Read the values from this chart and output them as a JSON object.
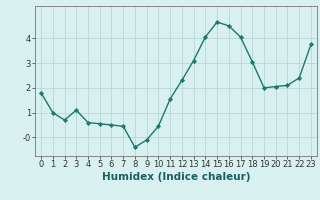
{
  "x": [
    0,
    1,
    2,
    3,
    4,
    5,
    6,
    7,
    8,
    9,
    10,
    11,
    12,
    13,
    14,
    15,
    16,
    17,
    18,
    19,
    20,
    21,
    22,
    23
  ],
  "y": [
    1.8,
    1.0,
    0.7,
    1.1,
    0.6,
    0.55,
    0.5,
    0.45,
    -0.4,
    -0.1,
    0.45,
    1.55,
    2.3,
    3.1,
    4.05,
    4.65,
    4.5,
    4.05,
    3.05,
    2.0,
    2.05,
    2.1,
    2.4,
    3.75
  ],
  "line_color": "#1a7a6e",
  "marker": "D",
  "marker_size": 2.2,
  "background_color": "#d9f0f0",
  "grid_color": "#b8d8d8",
  "xlabel": "Humidex (Indice chaleur)",
  "xlim": [
    -0.5,
    23.5
  ],
  "ylim": [
    -0.75,
    5.3
  ],
  "yticks": [
    0,
    1,
    2,
    3,
    4
  ],
  "ytick_labels": [
    "-0",
    "1",
    "2",
    "3",
    "4"
  ],
  "xticks": [
    0,
    1,
    2,
    3,
    4,
    5,
    6,
    7,
    8,
    9,
    10,
    11,
    12,
    13,
    14,
    15,
    16,
    17,
    18,
    19,
    20,
    21,
    22,
    23
  ],
  "tick_fontsize": 6,
  "xlabel_fontsize": 7.5,
  "line_width": 1.0
}
